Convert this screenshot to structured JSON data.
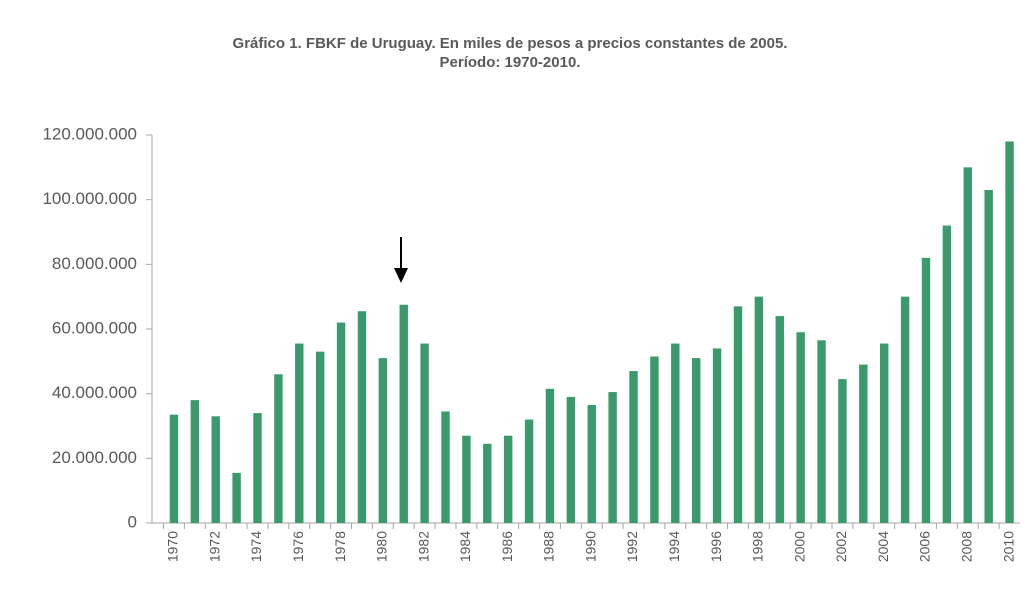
{
  "chart_data": {
    "type": "bar",
    "title": "Gráfico 1. FBKF de Uruguay. En miles de pesos a precios constantes de 2005.",
    "subtitle": "Período: 1970-2010.",
    "categories": [
      "1970",
      null,
      "1972",
      null,
      "1974",
      null,
      "1976",
      null,
      "1978",
      null,
      "1980",
      null,
      "1982",
      null,
      "1984",
      null,
      "1986",
      null,
      "1988",
      null,
      "1990",
      null,
      "1992",
      null,
      "1994",
      null,
      "1996",
      null,
      "1998",
      null,
      "2000",
      null,
      "2002",
      null,
      "2004",
      null,
      "2006",
      null,
      "2008",
      null,
      "2010"
    ],
    "values": [
      33500000,
      38000000,
      33000000,
      15500000,
      34000000,
      46000000,
      55500000,
      53000000,
      62000000,
      65500000,
      51000000,
      67500000,
      55500000,
      34500000,
      27000000,
      24500000,
      27000000,
      32000000,
      41500000,
      39000000,
      36500000,
      40500000,
      47000000,
      51500000,
      55500000,
      51000000,
      54000000,
      67000000,
      70000000,
      64000000,
      59000000,
      56500000,
      44500000,
      49000000,
      55500000,
      70000000,
      82000000,
      92000000,
      110000000,
      103000000,
      118000000
    ],
    "color": "#3b9a6b",
    "ylim": [
      0,
      120000000
    ],
    "yticks": [
      0,
      {
        "value": 20000000,
        "label": "20.000.000"
      },
      {
        "value": 40000000,
        "label": "40.000.000"
      },
      {
        "value": 60000000,
        "label": "60.000.000"
      },
      {
        "value": 80000000,
        "label": "80.000.000"
      },
      {
        "value": 100000000,
        "label": "100.000.000"
      },
      {
        "value": 120000000,
        "label": "120.000.000"
      }
    ],
    "grid": false
  }
}
